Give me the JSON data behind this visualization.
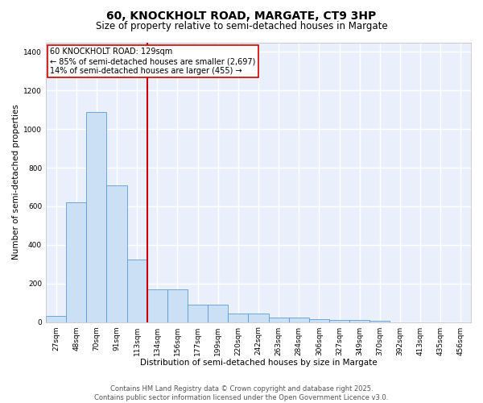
{
  "title_line1": "60, KNOCKHOLT ROAD, MARGATE, CT9 3HP",
  "title_line2": "Size of property relative to semi-detached houses in Margate",
  "xlabel": "Distribution of semi-detached houses by size in Margate",
  "ylabel": "Number of semi-detached properties",
  "categories": [
    "27sqm",
    "48sqm",
    "70sqm",
    "91sqm",
    "113sqm",
    "134sqm",
    "156sqm",
    "177sqm",
    "199sqm",
    "220sqm",
    "242sqm",
    "263sqm",
    "284sqm",
    "306sqm",
    "327sqm",
    "349sqm",
    "370sqm",
    "392sqm",
    "413sqm",
    "435sqm",
    "456sqm"
  ],
  "values": [
    30,
    620,
    1090,
    710,
    325,
    170,
    170,
    90,
    90,
    45,
    45,
    25,
    25,
    15,
    12,
    12,
    8,
    0,
    0,
    0,
    0
  ],
  "bar_color": "#cce0f5",
  "bar_edge_color": "#5b9bd5",
  "background_color": "#eaf0fb",
  "grid_color": "#ffffff",
  "vline_color": "#cc0000",
  "annotation_line1": "60 KNOCKHOLT ROAD: 129sqm",
  "annotation_line2": "← 85% of semi-detached houses are smaller (2,697)",
  "annotation_line3": "14% of semi-detached houses are larger (455) →",
  "annotation_box_color": "#cc0000",
  "ylim": [
    0,
    1450
  ],
  "yticks": [
    0,
    200,
    400,
    600,
    800,
    1000,
    1200,
    1400
  ],
  "footer_line1": "Contains HM Land Registry data © Crown copyright and database right 2025.",
  "footer_line2": "Contains public sector information licensed under the Open Government Licence v3.0.",
  "title_fontsize": 10,
  "subtitle_fontsize": 8.5,
  "axis_label_fontsize": 7.5,
  "tick_fontsize": 6.5,
  "annotation_fontsize": 7,
  "footer_fontsize": 6
}
